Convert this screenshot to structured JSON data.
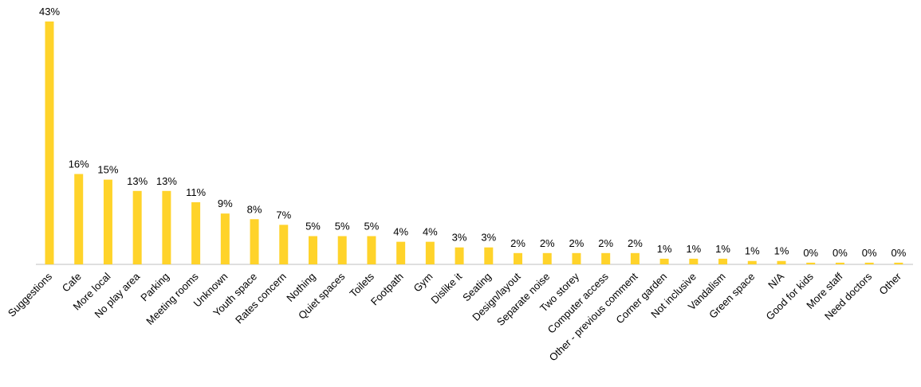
{
  "chart_data": {
    "type": "bar",
    "categories": [
      "Suggestions",
      "Cafe",
      "More local",
      "No play area",
      "Parking",
      "Meeting rooms",
      "Unknown",
      "Youth space",
      "Rates concern",
      "Nothing",
      "Quiet spaces",
      "Toilets",
      "Footpath",
      "Gym",
      "Dislike it",
      "Seating",
      "Design/layout",
      "Separate noise",
      "Two storey",
      "Computer access",
      "Other - previous comment",
      "Corner garden",
      "Not inclusive",
      "Vandalism",
      "Green space",
      "N/A",
      "Good for kids",
      "More staff",
      "Need doctors",
      "Other"
    ],
    "values": [
      43,
      16,
      15,
      13,
      13,
      11,
      9,
      8,
      7,
      5,
      5,
      5,
      4,
      4,
      3,
      3,
      2,
      2,
      2,
      2,
      2,
      1,
      1,
      1,
      0.6,
      0.6,
      0.3,
      0.3,
      0.3,
      0.3
    ],
    "value_labels": [
      "43%",
      "16%",
      "15%",
      "13%",
      "13%",
      "11%",
      "9%",
      "8%",
      "7%",
      "5%",
      "5%",
      "5%",
      "4%",
      "4%",
      "3%",
      "3%",
      "2%",
      "2%",
      "2%",
      "2%",
      "2%",
      "1%",
      "1%",
      "1%",
      "1%",
      "1%",
      "0%",
      "0%",
      "0%",
      "0%"
    ],
    "color": "#ffd32a"
  }
}
